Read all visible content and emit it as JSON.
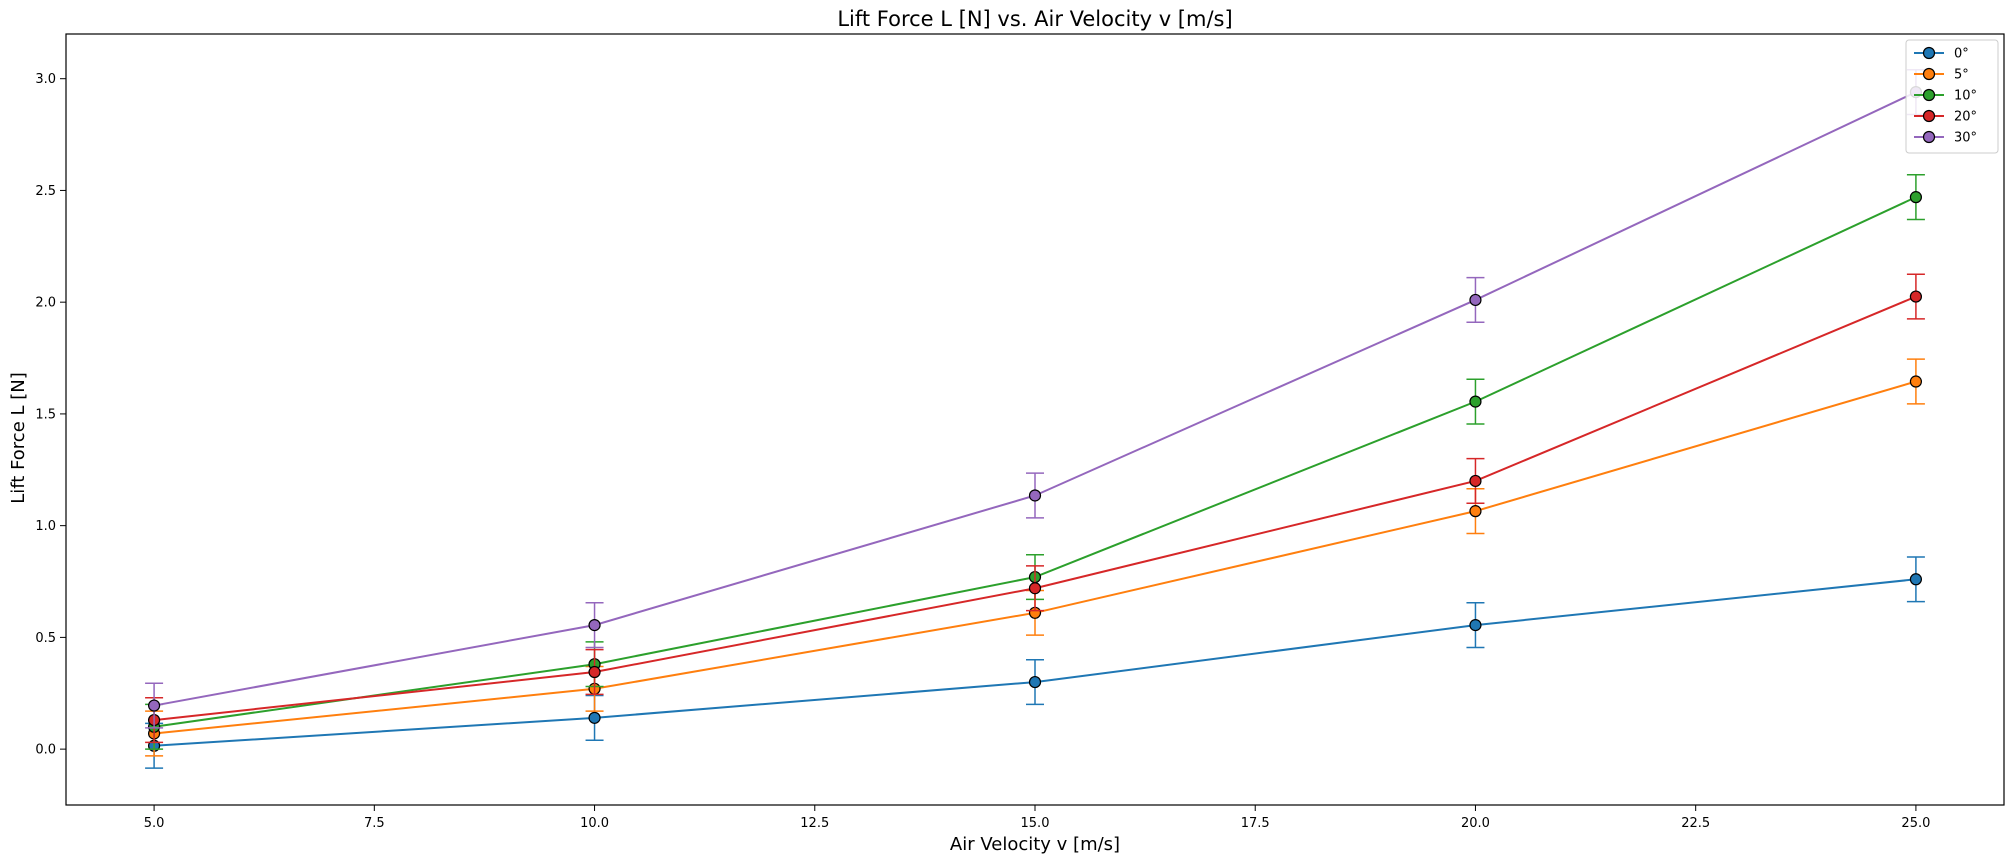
{
  "chart_data": {
    "type": "line",
    "title": "Lift Force L [N] vs. Air Velocity v [m/s]",
    "xlabel": "Air Velocity v [m/s]",
    "ylabel": "Lift Force L [N]",
    "xlim": [
      4.0,
      26.0
    ],
    "ylim": [
      -0.25,
      3.2
    ],
    "xticks": [
      "5.0",
      "7.5",
      "10.0",
      "12.5",
      "15.0",
      "17.5",
      "20.0",
      "22.5",
      "25.0"
    ],
    "yticks": [
      "0.0",
      "0.5",
      "1.0",
      "1.5",
      "2.0",
      "2.5",
      "3.0"
    ],
    "x": [
      5,
      10,
      15,
      20,
      25
    ],
    "error_bar": 0.1,
    "grid": false,
    "legend_position": "top-right",
    "series": [
      {
        "name": "0°",
        "color": "#1f77b4",
        "values": [
          0.015,
          0.14,
          0.3,
          0.555,
          0.76
        ]
      },
      {
        "name": "5°",
        "color": "#ff7f0e",
        "values": [
          0.07,
          0.27,
          0.61,
          1.065,
          1.645
        ]
      },
      {
        "name": "10°",
        "color": "#2ca02c",
        "values": [
          0.1,
          0.38,
          0.77,
          1.555,
          2.47
        ]
      },
      {
        "name": "20°",
        "color": "#d62728",
        "values": [
          0.13,
          0.345,
          0.72,
          1.2,
          2.025
        ]
      },
      {
        "name": "30°",
        "color": "#9467bd",
        "values": [
          0.195,
          0.555,
          1.135,
          2.01,
          2.94
        ]
      }
    ]
  }
}
